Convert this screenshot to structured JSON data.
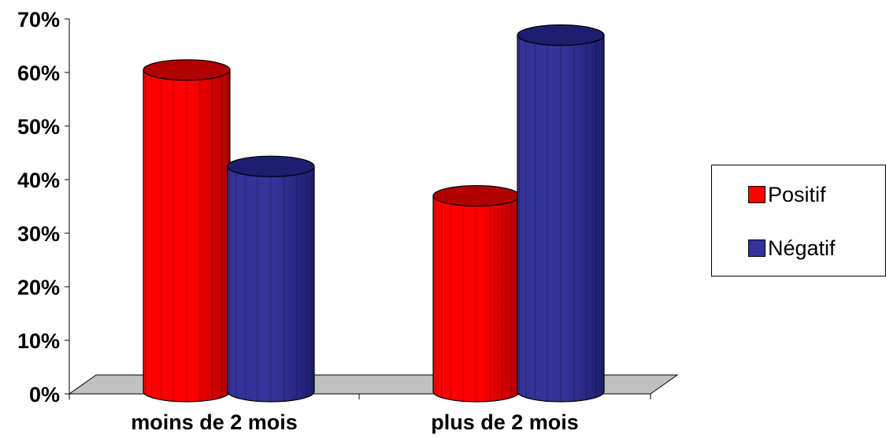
{
  "chart_data": {
    "type": "bar",
    "style": "3d-cylinder",
    "categories": [
      "moins de 2 mois",
      "plus de 2 mois"
    ],
    "series": [
      {
        "name": "Positif",
        "values": [
          0.59,
          0.355
        ],
        "color": "#ff0000",
        "color_dark": "#b00000"
      },
      {
        "name": "Négatif",
        "values": [
          0.41,
          0.655
        ],
        "color": "#333399",
        "color_dark": "#1e1e70"
      }
    ],
    "ylim": [
      0,
      0.7
    ],
    "yticks": [
      0,
      0.1,
      0.2,
      0.3,
      0.4,
      0.5,
      0.6,
      0.7
    ],
    "ytick_labels": [
      "0%",
      "10%",
      "20%",
      "30%",
      "40%",
      "50%",
      "60%",
      "70%"
    ],
    "floor_color": "#c0c0c0",
    "grid": false,
    "legend_position": "right",
    "title": "",
    "xlabel": "",
    "ylabel": ""
  }
}
